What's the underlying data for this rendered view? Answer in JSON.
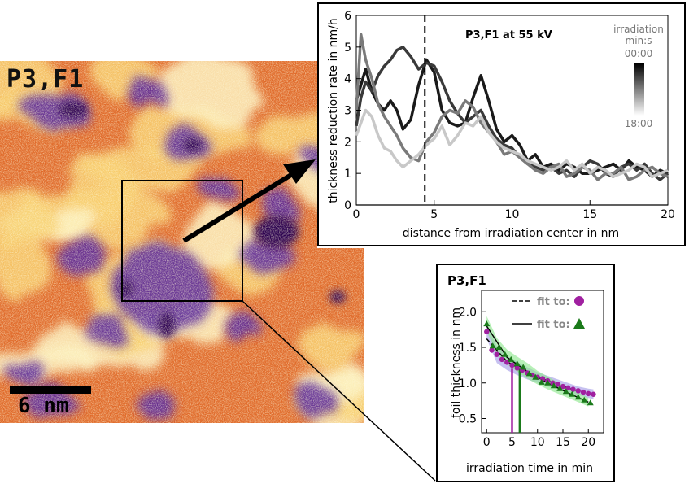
{
  "micrograph": {
    "label": "P3,F1",
    "scalebar_label": "6 nm"
  },
  "colors": {
    "dark_purple": "#2a0650",
    "purple": "#5b2a9a",
    "magenta": "#a0308a",
    "orange": "#e06a2a",
    "yellow": "#f8d070",
    "cream": "#fdf2c0",
    "fit_circle": "#a020a0",
    "fit_triangle": "#1a7a1a",
    "band_purple": "#a8a0e8",
    "band_green": "#90e890"
  },
  "chart_data": [
    {
      "type": "line",
      "title": "P3,F1 at 55 kV",
      "xlabel": "distance from irradiation center in nm",
      "ylabel": "thickness reduction rate in nm/h",
      "xlim": [
        0,
        20
      ],
      "ylim": [
        0,
        6
      ],
      "x_ticks": [
        "0",
        "5",
        "10",
        "15",
        "20"
      ],
      "y_ticks": [
        "0",
        "1",
        "2",
        "3",
        "4",
        "5",
        "6"
      ],
      "grid": false,
      "vline_x": 4.4,
      "hline_y": 0,
      "colorbar": {
        "title_line1": "irradiation",
        "title_line2": "min:s",
        "top_label": "00:00",
        "bottom_label": "18:00",
        "top_color": "#000000",
        "bottom_color": "#ffffff"
      },
      "series": [
        {
          "color": "#1a1a1a",
          "x": [
            0,
            0.3,
            0.6,
            1.0,
            1.4,
            1.8,
            2.2,
            2.6,
            3.0,
            3.5,
            4.0,
            4.5,
            5.0,
            5.5,
            6.0,
            6.5,
            7.0,
            7.5,
            8.0,
            8.5,
            9.0,
            9.5,
            10.0,
            10.5,
            11.0,
            11.5,
            12.0,
            12.5,
            13.0,
            13.5,
            14.0,
            14.5,
            15.0,
            15.5,
            16.0,
            16.5,
            17.0,
            17.5,
            18.0,
            18.5,
            19.0,
            19.5,
            20.0
          ],
          "y": [
            3.3,
            3.8,
            4.3,
            3.6,
            3.2,
            3.0,
            3.3,
            3.0,
            2.4,
            2.7,
            3.8,
            4.6,
            4.2,
            3.0,
            2.6,
            2.5,
            2.6,
            3.4,
            4.1,
            3.3,
            2.4,
            2.0,
            2.2,
            1.9,
            1.4,
            1.6,
            1.2,
            1.3,
            1.1,
            1.3,
            1.2,
            1.0,
            1.0,
            1.1,
            1.2,
            1.3,
            1.1,
            1.4,
            1.2,
            1.1,
            0.9,
            1.1,
            1.0
          ]
        },
        {
          "color": "#3a3a3a",
          "x": [
            0,
            0.3,
            0.6,
            1.0,
            1.4,
            1.8,
            2.2,
            2.6,
            3.0,
            3.5,
            4.0,
            4.5,
            5.0,
            5.5,
            6.0,
            6.5,
            7.0,
            7.5,
            8.0,
            8.5,
            9.0,
            9.5,
            10.0,
            10.5,
            11.0,
            11.5,
            12.0,
            12.5,
            13.0,
            13.5,
            14.0,
            14.5,
            15.0,
            15.5,
            16.0,
            16.5,
            17.0,
            17.5,
            18.0,
            18.5,
            19.0,
            19.5,
            20.0
          ],
          "y": [
            2.5,
            3.4,
            3.9,
            3.6,
            4.1,
            4.4,
            4.6,
            4.9,
            5.0,
            4.7,
            4.3,
            4.5,
            4.4,
            3.9,
            3.3,
            2.9,
            2.6,
            2.8,
            3.0,
            2.5,
            2.1,
            1.9,
            1.8,
            1.5,
            1.3,
            1.2,
            1.1,
            1.2,
            1.0,
            1.1,
            0.9,
            1.2,
            1.4,
            1.3,
            1.0,
            0.9,
            1.2,
            1.3,
            1.1,
            1.3,
            1.0,
            0.8,
            1.0
          ]
        },
        {
          "color": "#7a7a7a",
          "x": [
            0,
            0.3,
            0.6,
            1.0,
            1.4,
            1.8,
            2.2,
            2.6,
            3.0,
            3.5,
            4.0,
            4.5,
            5.0,
            5.5,
            6.0,
            6.5,
            7.0,
            7.5,
            8.0,
            8.5,
            9.0,
            9.5,
            10.0,
            10.5,
            11.0,
            11.5,
            12.0,
            12.5,
            13.0,
            13.5,
            14.0,
            14.5,
            15.0,
            15.5,
            16.0,
            16.5,
            17.0,
            17.5,
            18.0,
            18.5,
            19.0,
            19.5,
            20.0
          ],
          "y": [
            3.0,
            5.4,
            4.6,
            4.0,
            3.2,
            2.8,
            2.5,
            2.2,
            1.8,
            1.5,
            1.4,
            2.0,
            2.3,
            2.8,
            3.0,
            2.9,
            3.3,
            3.1,
            2.6,
            2.3,
            2.0,
            1.6,
            1.7,
            1.5,
            1.3,
            1.1,
            1.0,
            1.2,
            1.3,
            0.9,
            1.0,
            1.2,
            1.1,
            0.8,
            1.0,
            1.0,
            1.2,
            0.8,
            0.9,
            1.1,
            1.2,
            1.0,
            0.9
          ]
        },
        {
          "color": "#c8c8c8",
          "x": [
            0,
            0.3,
            0.6,
            1.0,
            1.4,
            1.8,
            2.2,
            2.6,
            3.0,
            3.5,
            4.0,
            4.5,
            5.0,
            5.5,
            6.0,
            6.5,
            7.0,
            7.5,
            8.0,
            8.5,
            9.0,
            9.5,
            10.0,
            10.5,
            11.0,
            11.5,
            12.0,
            12.5,
            13.0,
            13.5,
            14.0,
            14.5,
            15.0,
            15.5,
            16.0,
            16.5,
            17.0,
            17.5,
            18.0,
            18.5,
            19.0,
            19.5,
            20.0
          ],
          "y": [
            2.2,
            2.6,
            3.0,
            2.8,
            2.2,
            1.8,
            1.7,
            1.4,
            1.2,
            1.4,
            1.6,
            1.9,
            2.1,
            2.5,
            1.9,
            2.2,
            2.6,
            2.5,
            2.8,
            2.3,
            2.0,
            1.8,
            1.7,
            1.6,
            1.4,
            1.3,
            1.2,
            1.1,
            1.2,
            1.4,
            1.1,
            1.3,
            1.0,
            1.2,
            1.1,
            0.9,
            1.0,
            1.1,
            1.3,
            1.2,
            0.9,
            1.0,
            1.1
          ]
        }
      ]
    },
    {
      "type": "scatter",
      "title": "P3,F1",
      "xlabel": "irradiation time in min",
      "ylabel": "foil thickness in nm",
      "xlim": [
        -1,
        23
      ],
      "ylim": [
        0.3,
        2.3
      ],
      "x_ticks": [
        "0",
        "5",
        "10",
        "15",
        "20"
      ],
      "y_ticks": [
        "0.5",
        "1.0",
        "1.5",
        "2.0"
      ],
      "grid": false,
      "legend": [
        {
          "text": "fit to:",
          "line_style": "dashed",
          "marker": "circle",
          "marker_color": "#a020a0"
        },
        {
          "text": "fit to:",
          "line_style": "solid",
          "marker": "triangle",
          "marker_color": "#1a7a1a"
        }
      ],
      "series": [
        {
          "marker": "circle",
          "color": "#a020a0",
          "x": [
            0,
            1,
            2,
            3,
            4,
            5,
            6,
            7,
            8,
            9,
            10,
            11,
            12,
            13,
            14,
            15,
            16,
            17,
            18,
            19,
            20,
            21
          ],
          "y": [
            1.72,
            1.46,
            1.4,
            1.33,
            1.29,
            1.25,
            1.21,
            1.18,
            1.14,
            1.11,
            1.08,
            1.06,
            1.03,
            1.0,
            0.98,
            0.95,
            0.93,
            0.91,
            0.89,
            0.87,
            0.85,
            0.84
          ]
        },
        {
          "marker": "triangle",
          "color": "#1a7a1a",
          "x": [
            0,
            1.2,
            2.4,
            3.6,
            4.8,
            6.0,
            7.2,
            8.4,
            9.6,
            10.8,
            12.0,
            13.2,
            14.4,
            15.6,
            16.8,
            18.0,
            19.2,
            20.4
          ],
          "y": [
            1.83,
            1.52,
            1.5,
            1.4,
            1.33,
            1.27,
            1.22,
            1.13,
            1.08,
            1.01,
            1.0,
            0.96,
            0.92,
            0.88,
            0.84,
            0.8,
            0.76,
            0.72
          ]
        }
      ],
      "bands": [
        {
          "color": "#a8a0e8",
          "x": [
            0,
            2,
            4,
            6,
            8,
            10,
            12,
            14,
            16,
            18,
            20,
            21
          ],
          "upper": [
            1.8,
            1.52,
            1.38,
            1.3,
            1.22,
            1.15,
            1.1,
            1.05,
            1.0,
            0.95,
            0.92,
            0.91
          ],
          "lower": [
            1.62,
            1.28,
            1.18,
            1.11,
            1.05,
            1.0,
            0.95,
            0.91,
            0.87,
            0.83,
            0.79,
            0.77
          ]
        },
        {
          "color": "#90e890",
          "x": [
            0,
            2,
            4,
            6,
            8,
            10,
            12,
            14,
            16,
            18,
            20
          ],
          "upper": [
            1.94,
            1.63,
            1.47,
            1.37,
            1.28,
            1.17,
            1.09,
            1.01,
            0.94,
            0.87,
            0.79
          ],
          "lower": [
            1.73,
            1.4,
            1.26,
            1.16,
            1.06,
            0.98,
            0.91,
            0.85,
            0.79,
            0.73,
            0.67
          ]
        }
      ],
      "fits": [
        {
          "style": "dashed",
          "color": "#000000",
          "x": [
            0,
            4,
            8,
            12,
            16,
            20
          ],
          "y": [
            1.62,
            1.3,
            1.14,
            1.03,
            0.93,
            0.84
          ]
        },
        {
          "style": "solid",
          "color": "#000000",
          "x": [
            0,
            4,
            8,
            12,
            16,
            20
          ],
          "y": [
            1.8,
            1.36,
            1.16,
            1.0,
            0.86,
            0.73
          ]
        }
      ],
      "vlines": [
        {
          "x": 5.0,
          "color": "#a020a0"
        },
        {
          "x": 6.5,
          "color": "#1a7a1a"
        }
      ]
    }
  ]
}
